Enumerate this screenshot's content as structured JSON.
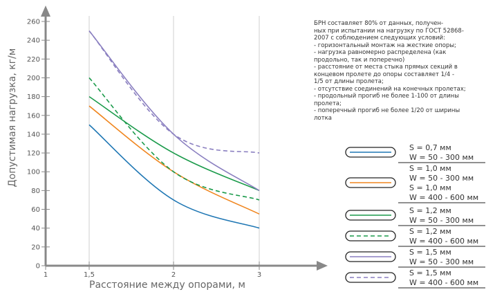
{
  "chart_data": {
    "type": "line",
    "xlabel": "Расстояние между опорами, м",
    "ylabel": "Допустимая нагрузка, кг/м",
    "x_ticks": [
      "1",
      "1,5",
      "2",
      "3"
    ],
    "y_ticks": [
      "0",
      "20",
      "40",
      "60",
      "80",
      "100",
      "120",
      "140",
      "160",
      "180",
      "200",
      "220",
      "240",
      "260"
    ],
    "ylim": [
      0,
      260
    ],
    "x": [
      1.5,
      2,
      3
    ],
    "series": [
      {
        "name": "S = 0,7 мм W = 50 - 300 мм",
        "color": "#1f77b4",
        "dash": false,
        "values": [
          150,
          70,
          40
        ]
      },
      {
        "name": "S = 1,0 мм W = 50 - 300 мм; S = 1,0 мм W = 400 - 600 мм",
        "color": "#f0861f",
        "dash": false,
        "values": [
          170,
          100,
          55
        ]
      },
      {
        "name": "S = 1,2 мм W = 50 - 300 мм",
        "color": "#1a9a4a",
        "dash": false,
        "values": [
          180,
          120,
          80
        ]
      },
      {
        "name": "S = 1,2 мм W = 400 - 600 мм",
        "color": "#1a9a4a",
        "dash": true,
        "values": [
          200,
          100,
          70
        ]
      },
      {
        "name": "S = 1,5 мм W = 50 - 300 мм",
        "color": "#8a7fc0",
        "dash": false,
        "values": [
          250,
          140,
          80
        ]
      },
      {
        "name": "S = 1,5 мм W = 400 - 600 мм",
        "color": "#8a7fc0",
        "dash": true,
        "values": [
          250,
          140,
          120
        ]
      }
    ]
  },
  "notes": [
    "БРН составляет 80% от данных, получен-",
    "ных при испытании на нагрузку по ГОСТ 52868-",
    "2007 с соблюдением следующих условий:",
    "- горизонтальный монтаж на жесткие опоры;",
    "- нагрузка равномерно распределена (как",
    "  продольно, так и поперечно)",
    "- расстояние от места стыка прямых секций в",
    "  концевом пролете до опоры составляет 1/4 -",
    "  1/5 от длины пролета;",
    "- отсутствие соединений на конечных пролетах;",
    "- продольный прогиб не более 1-100 от длины",
    "  пролета;",
    "- поперечный прогиб не более 1/20 от ширины",
    "  лотка"
  ],
  "legend": [
    {
      "lines": [
        "S = 0,7 мм",
        "W = 50 - 300 мм"
      ],
      "color": "#1f77b4",
      "dash": false
    },
    {
      "lines": [
        "S = 1,0 мм",
        "W = 50 - 300 мм",
        "S = 1,0 мм",
        "W = 400 - 600 мм"
      ],
      "color": "#f0861f",
      "dash": false
    },
    {
      "lines": [
        "S = 1,2 мм",
        "W = 50 - 300 мм"
      ],
      "color": "#1a9a4a",
      "dash": false
    },
    {
      "lines": [
        "S = 1,2 мм",
        "W = 400 - 600 мм"
      ],
      "color": "#1a9a4a",
      "dash": true
    },
    {
      "lines": [
        "S = 1,5 мм",
        "W = 50 - 300 мм"
      ],
      "color": "#8a7fc0",
      "dash": false
    },
    {
      "lines": [
        "S = 1,5 мм",
        "W = 400 - 600 мм"
      ],
      "color": "#8a7fc0",
      "dash": true
    }
  ]
}
